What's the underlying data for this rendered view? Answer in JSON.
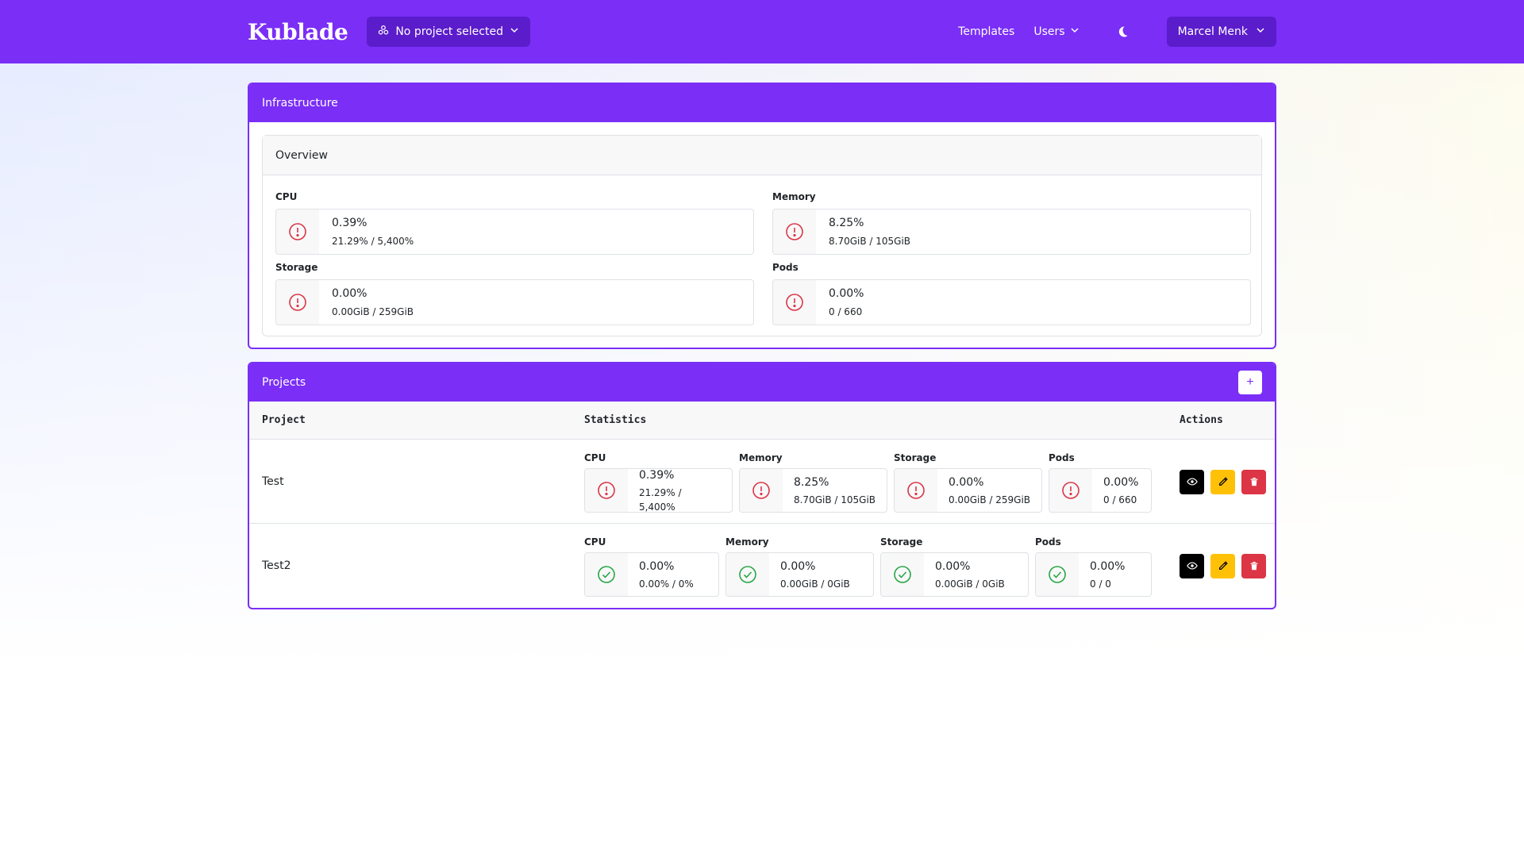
{
  "app": {
    "brand": "Kublade"
  },
  "nav": {
    "project_selector": "No project selected",
    "links": {
      "templates": "Templates",
      "users": "Users"
    },
    "user": "Marcel Menk"
  },
  "infrastructure": {
    "title": "Infrastructure",
    "overview_title": "Overview",
    "metrics": {
      "cpu": {
        "label": "CPU",
        "value": "0.39%",
        "detail": "21.29% / 5,400%",
        "status": "warning"
      },
      "memory": {
        "label": "Memory",
        "value": "8.25%",
        "detail": "8.70GiB / 105GiB",
        "status": "warning"
      },
      "storage": {
        "label": "Storage",
        "value": "0.00%",
        "detail": "0.00GiB / 259GiB",
        "status": "warning"
      },
      "pods": {
        "label": "Pods",
        "value": "0.00%",
        "detail": "0 / 660",
        "status": "warning"
      }
    }
  },
  "projects": {
    "title": "Projects",
    "add_label": "+",
    "columns": {
      "project": "Project",
      "statistics": "Statistics",
      "actions": "Actions"
    },
    "rows": [
      {
        "name": "Test",
        "stats": {
          "cpu": {
            "label": "CPU",
            "value": "0.39%",
            "detail": "21.29% / 5,400%",
            "status": "warning"
          },
          "memory": {
            "label": "Memory",
            "value": "8.25%",
            "detail": "8.70GiB / 105GiB",
            "status": "warning"
          },
          "storage": {
            "label": "Storage",
            "value": "0.00%",
            "detail": "0.00GiB / 259GiB",
            "status": "warning"
          },
          "pods": {
            "label": "Pods",
            "value": "0.00%",
            "detail": "0 / 660",
            "status": "warning"
          }
        }
      },
      {
        "name": "Test2",
        "stats": {
          "cpu": {
            "label": "CPU",
            "value": "0.00%",
            "detail": "0.00% / 0%",
            "status": "ok"
          },
          "memory": {
            "label": "Memory",
            "value": "0.00%",
            "detail": "0.00GiB / 0GiB",
            "status": "ok"
          },
          "storage": {
            "label": "Storage",
            "value": "0.00%",
            "detail": "0.00GiB / 0GiB",
            "status": "ok"
          },
          "pods": {
            "label": "Pods",
            "value": "0.00%",
            "detail": "0 / 0",
            "status": "ok"
          }
        }
      }
    ]
  },
  "colors": {
    "primary": "#7a2ef6",
    "danger": "#dc3545",
    "success": "#28a745",
    "warning": "#ffc107"
  }
}
